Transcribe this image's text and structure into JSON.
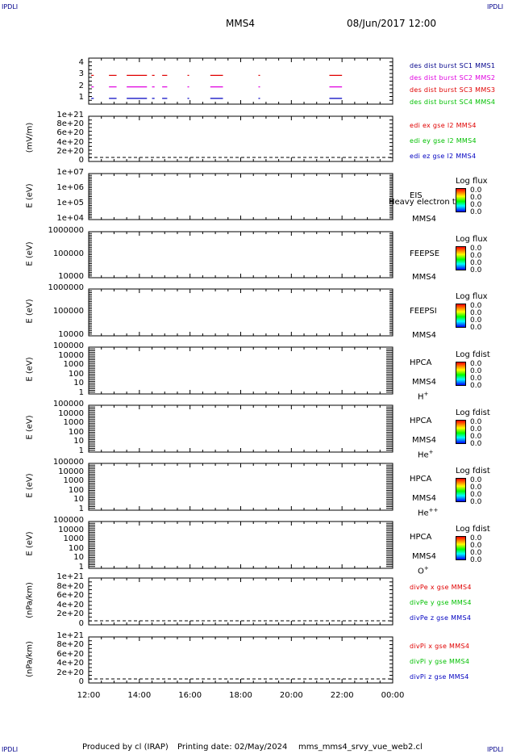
{
  "corners": {
    "tl": "IPDLI",
    "tr": "IPDLI",
    "bl": "IPDLI",
    "br": "IPDLI"
  },
  "header": {
    "title": "MMS4",
    "date": "08/Jun/2017 12:00"
  },
  "footer": {
    "produced": "Produced by cl (IRAP)",
    "printing": "Printing date: 02/May/2024",
    "file": "mms_mms4_srvy_vue_web2.cl"
  },
  "colors": {
    "red": "#e00000",
    "magenta": "#e000e0",
    "blue": "#0000c0",
    "green": "#00c000"
  },
  "chart_data": [
    {
      "type": "line",
      "panel": "burst",
      "yticks": [
        "1",
        "2",
        "3",
        "4"
      ],
      "ylim": [
        0.5,
        4.5
      ],
      "legend": [
        {
          "name": "des dist burst SC1 MMS1",
          "color": "#00008b"
        },
        {
          "name": "des dist burst SC2 MMS2",
          "color": "#e000e0"
        },
        {
          "name": "des dist burst SC3 MMS3",
          "color": "#e00000"
        },
        {
          "name": "des dist burst SC4 MMS4",
          "color": "#00c000"
        }
      ],
      "segments": [
        [
          12.1,
          12.2
        ],
        [
          12.8,
          13.1
        ],
        [
          13.5,
          14.3
        ],
        [
          14.5,
          14.6
        ],
        [
          14.9,
          15.1
        ],
        [
          15.9,
          15.95
        ],
        [
          16.8,
          17.3
        ],
        [
          18.7,
          18.75
        ],
        [
          21.5,
          22.0
        ]
      ],
      "series_levels": [
        {
          "level": 3,
          "color": "#e00000"
        },
        {
          "level": 2,
          "color": "#e000e0"
        },
        {
          "level": 1,
          "color": "#0000c0"
        }
      ]
    },
    {
      "type": "line",
      "panel": "edi",
      "ylabel": "(mV/m)",
      "yticks": [
        "1e+21",
        "8e+20",
        "6e+20",
        "4e+20",
        "2e+20",
        "0"
      ],
      "legend": [
        {
          "name": "edi ex gse l2 MMS4",
          "color": "#e00000"
        },
        {
          "name": "edi ey gse l2 MMS4",
          "color": "#00c000"
        },
        {
          "name": "edi ez gse l2 MMS4",
          "color": "#0000c0"
        }
      ]
    },
    {
      "type": "heatmap",
      "panel": "eis",
      "ylabel": "E (eV)",
      "yticks": [
        "1e+07",
        "1e+06",
        "1e+05",
        "1e+04"
      ],
      "side": [
        "EIS",
        "MMS4"
      ],
      "overlay": "Heavy electron tof",
      "cb_title": "Log flux",
      "cb_vals": [
        "0.0",
        "0.0",
        "0.0",
        "0.0"
      ]
    },
    {
      "type": "heatmap",
      "panel": "feepse",
      "ylabel": "E (eV)",
      "yticks": [
        "1000000",
        "100000",
        "10000"
      ],
      "side": [
        "FEEPSE",
        "MMS4"
      ],
      "cb_title": "Log flux",
      "cb_vals": [
        "0.0",
        "0.0",
        "0.0",
        "0.0"
      ]
    },
    {
      "type": "heatmap",
      "panel": "feepsi",
      "ylabel": "E (eV)",
      "yticks": [
        "1000000",
        "100000",
        "10000"
      ],
      "side": [
        "FEEPSI",
        "MMS4"
      ],
      "cb_title": "Log flux",
      "cb_vals": [
        "0.0",
        "0.0",
        "0.0",
        "0.0"
      ]
    },
    {
      "type": "heatmap",
      "panel": "hpca_h",
      "ylabel": "E (eV)",
      "yticks": [
        "100000",
        "10000",
        "1000",
        "100",
        "10",
        "1"
      ],
      "side": [
        "HPCA",
        "MMS4"
      ],
      "species": "H",
      "sup": "+",
      "cb_title": "Log fdist",
      "cb_vals": [
        "0.0",
        "0.0",
        "0.0",
        "0.0"
      ]
    },
    {
      "type": "heatmap",
      "panel": "hpca_he",
      "ylabel": "E (eV)",
      "yticks": [
        "100000",
        "10000",
        "1000",
        "100",
        "10",
        "1"
      ],
      "side": [
        "HPCA",
        "MMS4"
      ],
      "species": "He",
      "sup": "+",
      "cb_title": "Log fdist",
      "cb_vals": [
        "0.0",
        "0.0",
        "0.0",
        "0.0"
      ]
    },
    {
      "type": "heatmap",
      "panel": "hpca_hepp",
      "ylabel": "E (eV)",
      "yticks": [
        "100000",
        "10000",
        "1000",
        "100",
        "10",
        "1"
      ],
      "side": [
        "HPCA",
        "MMS4"
      ],
      "species": "He",
      "sup": "++",
      "cb_title": "Log fdist",
      "cb_vals": [
        "0.0",
        "0.0",
        "0.0",
        "0.0"
      ]
    },
    {
      "type": "heatmap",
      "panel": "hpca_o",
      "ylabel": "E (eV)",
      "yticks": [
        "100000",
        "10000",
        "1000",
        "100",
        "10",
        "1"
      ],
      "side": [
        "HPCA",
        "MMS4"
      ],
      "species": "O",
      "sup": "+",
      "cb_title": "Log fdist",
      "cb_vals": [
        "0.0",
        "0.0",
        "0.0",
        "0.0"
      ]
    },
    {
      "type": "line",
      "panel": "divpe",
      "ylabel": "(nPa/km)",
      "yticks": [
        "1e+21",
        "8e+20",
        "6e+20",
        "4e+20",
        "2e+20",
        "0"
      ],
      "legend": [
        {
          "name": "divPe x gse MMS4",
          "color": "#e00000"
        },
        {
          "name": "divPe y gse MMS4",
          "color": "#00c000"
        },
        {
          "name": "divPe z gse MMS4",
          "color": "#0000c0"
        }
      ]
    },
    {
      "type": "line",
      "panel": "divpi",
      "ylabel": "(nPa/km)",
      "yticks": [
        "1e+21",
        "8e+20",
        "6e+20",
        "4e+20",
        "2e+20",
        "0"
      ],
      "legend": [
        {
          "name": "divPi x gse MMS4",
          "color": "#e00000"
        },
        {
          "name": "divPi y gse MMS4",
          "color": "#00c000"
        },
        {
          "name": "divPi z gse MMS4",
          "color": "#0000c0"
        }
      ]
    }
  ],
  "xaxis": {
    "ticks": [
      "12:00",
      "14:00",
      "16:00",
      "18:00",
      "20:00",
      "22:00",
      "00:00"
    ],
    "range": [
      12,
      24
    ]
  }
}
